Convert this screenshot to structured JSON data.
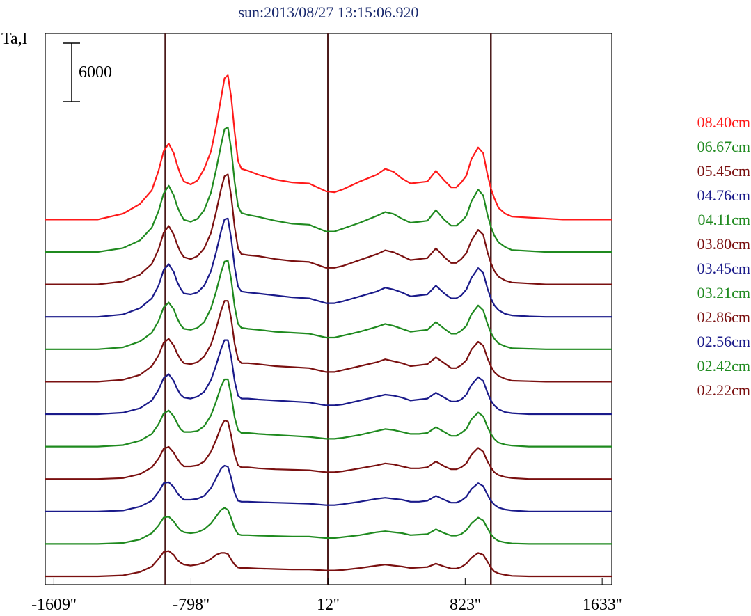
{
  "chart_data": {
    "type": "line",
    "title": "sun:2013/08/27 13:15:06.920",
    "ylabel": "Ta,I",
    "scale_bar_label": "6000",
    "scale_bar_value": 6000,
    "xlim": [
      -1660,
      1690
    ],
    "x_ticks": [
      {
        "value": -1609,
        "label": "-1609''"
      },
      {
        "value": -798,
        "label": "-798''"
      },
      {
        "value": 12,
        "label": "12''"
      },
      {
        "value": 823,
        "label": "823''"
      },
      {
        "value": 1633,
        "label": "1633''"
      }
    ],
    "vertical_markers": [
      -950,
      12,
      975
    ],
    "marker_color": "#4a1a1a",
    "grid": false,
    "legend_position": "right",
    "x": [
      -1660,
      -1500,
      -1350,
      -1200,
      -1100,
      -1030,
      -990,
      -960,
      -930,
      -900,
      -880,
      -860,
      -840,
      -800,
      -760,
      -720,
      -680,
      -650,
      -620,
      -600,
      -580,
      -560,
      -540,
      -520,
      -500,
      -460,
      -400,
      -300,
      -200,
      -100,
      0,
      50,
      100,
      200,
      300,
      350,
      400,
      450,
      500,
      550,
      600,
      650,
      700,
      740,
      770,
      800,
      830,
      860,
      900,
      930,
      955,
      975,
      995,
      1020,
      1060,
      1100,
      1200,
      1300,
      1400,
      1500,
      1690
    ],
    "series": [
      {
        "name": "08.40cm",
        "color": "#ff1a1a",
        "offset": 0,
        "values": [
          0,
          0,
          0,
          600,
          1600,
          3000,
          5000,
          7000,
          7800,
          6800,
          5600,
          4600,
          3900,
          3600,
          4000,
          5200,
          7000,
          9500,
          12500,
          14500,
          14800,
          12500,
          9000,
          6000,
          5200,
          5000,
          4600,
          4100,
          3800,
          3700,
          2900,
          2800,
          3100,
          3900,
          4600,
          5200,
          4900,
          4200,
          3700,
          3800,
          3900,
          5000,
          4000,
          3300,
          3300,
          3800,
          4500,
          6200,
          7400,
          6800,
          4600,
          3200,
          2200,
          1200,
          600,
          300,
          200,
          100,
          0,
          0,
          0
        ]
      },
      {
        "name": "06.67cm",
        "color": "#1f8a1f",
        "offset": 1,
        "values": [
          0,
          0,
          0,
          400,
          1200,
          2500,
          4200,
          6000,
          6800,
          5800,
          4700,
          3900,
          3300,
          3100,
          3400,
          4300,
          6100,
          8400,
          11000,
          12600,
          12800,
          10500,
          7200,
          4700,
          4000,
          3800,
          3600,
          3200,
          2900,
          2800,
          2100,
          2100,
          2400,
          3000,
          3700,
          4100,
          3900,
          3400,
          3000,
          3100,
          3200,
          4300,
          3300,
          2700,
          2700,
          3100,
          3700,
          5200,
          6400,
          5800,
          3800,
          2600,
          1700,
          1000,
          500,
          200,
          100,
          0,
          0,
          0,
          0
        ]
      },
      {
        "name": "05.45cm",
        "color": "#7a1010",
        "offset": 2,
        "values": [
          0,
          0,
          0,
          300,
          1000,
          2100,
          3600,
          5300,
          6000,
          5100,
          4100,
          3300,
          2800,
          2600,
          2900,
          3700,
          5300,
          7400,
          9800,
          11100,
          11300,
          9000,
          5900,
          3700,
          3100,
          3000,
          2900,
          2600,
          2400,
          2300,
          1700,
          1700,
          1900,
          2500,
          3100,
          3500,
          3300,
          2900,
          2500,
          2600,
          2700,
          3700,
          2800,
          2200,
          2200,
          2600,
          3200,
          4500,
          5600,
          5100,
          3300,
          2200,
          1400,
          800,
          400,
          200,
          100,
          0,
          0,
          0,
          0
        ]
      },
      {
        "name": "04.76cm",
        "color": "#1a1a8a",
        "offset": 3,
        "values": [
          0,
          0,
          0,
          250,
          900,
          1900,
          3200,
          4800,
          5400,
          4600,
          3600,
          2900,
          2400,
          2300,
          2500,
          3200,
          4700,
          6600,
          8800,
          10000,
          10100,
          8000,
          5100,
          3100,
          2600,
          2500,
          2400,
          2200,
          2000,
          1900,
          1400,
          1400,
          1600,
          2100,
          2600,
          3000,
          2800,
          2500,
          2100,
          2200,
          2300,
          3200,
          2400,
          1900,
          1900,
          2200,
          2800,
          4000,
          5000,
          4500,
          2900,
          1900,
          1200,
          700,
          300,
          150,
          50,
          0,
          0,
          0,
          0
        ]
      },
      {
        "name": "04.11cm",
        "color": "#1f8a1f",
        "offset": 4,
        "values": [
          0,
          0,
          0,
          200,
          800,
          1700,
          2900,
          4300,
          4800,
          4100,
          3200,
          2500,
          2100,
          2000,
          2200,
          2800,
          4200,
          5900,
          7900,
          9000,
          9100,
          7100,
          4400,
          2600,
          2200,
          2100,
          2000,
          1800,
          1700,
          1600,
          1200,
          1200,
          1400,
          1800,
          2300,
          2600,
          2400,
          2100,
          1800,
          1900,
          2000,
          2800,
          2100,
          1600,
          1600,
          1900,
          2400,
          3600,
          4500,
          4000,
          2600,
          1700,
          1100,
          600,
          300,
          100,
          50,
          0,
          0,
          0,
          0
        ]
      },
      {
        "name": "03.80cm",
        "color": "#7a1010",
        "offset": 5,
        "values": [
          0,
          0,
          0,
          200,
          700,
          1600,
          2700,
          4000,
          4400,
          3700,
          2900,
          2300,
          1900,
          1800,
          2000,
          2600,
          3800,
          5400,
          7300,
          8300,
          8300,
          6400,
          3900,
          2300,
          1900,
          1900,
          1800,
          1600,
          1500,
          1400,
          1000,
          1000,
          1200,
          1600,
          2000,
          2300,
          2100,
          1900,
          1600,
          1700,
          1800,
          2500,
          1900,
          1400,
          1400,
          1700,
          2200,
          3300,
          4100,
          3700,
          2400,
          1600,
          1000,
          600,
          300,
          100,
          50,
          0,
          0,
          0,
          0
        ]
      },
      {
        "name": "03.45cm",
        "color": "#1a1a8a",
        "offset": 6,
        "values": [
          0,
          0,
          0,
          150,
          600,
          1400,
          2500,
          3700,
          4100,
          3400,
          2600,
          2000,
          1700,
          1600,
          1800,
          2300,
          3500,
          5000,
          6700,
          7600,
          7600,
          5800,
          3400,
          1900,
          1600,
          1600,
          1500,
          1400,
          1300,
          1200,
          900,
          900,
          1000,
          1400,
          1800,
          2000,
          1900,
          1700,
          1400,
          1500,
          1600,
          2200,
          1700,
          1300,
          1300,
          1500,
          2000,
          3000,
          3800,
          3400,
          2200,
          1400,
          900,
          500,
          200,
          100,
          0,
          0,
          0,
          0,
          0
        ]
      },
      {
        "name": "03.21cm",
        "color": "#1f8a1f",
        "offset": 7,
        "values": [
          0,
          0,
          0,
          150,
          600,
          1300,
          2300,
          3400,
          3700,
          3100,
          2400,
          1800,
          1500,
          1500,
          1600,
          2100,
          3200,
          4600,
          6200,
          6900,
          6900,
          5200,
          3000,
          1700,
          1400,
          1400,
          1300,
          1200,
          1100,
          1000,
          800,
          800,
          900,
          1200,
          1600,
          1800,
          1700,
          1500,
          1300,
          1300,
          1400,
          2000,
          1500,
          1100,
          1100,
          1400,
          1800,
          2800,
          3500,
          3100,
          2000,
          1300,
          800,
          400,
          200,
          100,
          0,
          0,
          0,
          0,
          0
        ]
      },
      {
        "name": "02.86cm",
        "color": "#7a1010",
        "offset": 8,
        "values": [
          0,
          0,
          0,
          100,
          500,
          1200,
          2100,
          3100,
          3300,
          2700,
          2100,
          1600,
          1300,
          1300,
          1400,
          1800,
          2800,
          4000,
          5400,
          6000,
          5900,
          4400,
          2500,
          1400,
          1200,
          1200,
          1100,
          1000,
          950,
          900,
          700,
          700,
          800,
          1100,
          1400,
          1600,
          1500,
          1300,
          1100,
          1100,
          1200,
          1800,
          1300,
          1000,
          1000,
          1200,
          1600,
          2500,
          3200,
          2800,
          1800,
          1200,
          700,
          400,
          200,
          100,
          0,
          0,
          0,
          0,
          0
        ]
      },
      {
        "name": "02.56cm",
        "color": "#1a1a8a",
        "offset": 9,
        "values": [
          0,
          0,
          0,
          100,
          500,
          1100,
          2000,
          2900,
          3000,
          2500,
          1900,
          1500,
          1200,
          1200,
          1300,
          1600,
          2400,
          3400,
          4400,
          4700,
          4600,
          3400,
          1900,
          1100,
          1000,
          1000,
          950,
          900,
          850,
          800,
          650,
          650,
          750,
          1000,
          1300,
          1400,
          1300,
          1200,
          1000,
          1000,
          1100,
          1600,
          1200,
          900,
          900,
          1100,
          1500,
          2300,
          2900,
          2600,
          1700,
          1100,
          700,
          400,
          200,
          100,
          0,
          0,
          0,
          0,
          0
        ]
      },
      {
        "name": "02.42cm",
        "color": "#1f8a1f",
        "offset": 10,
        "values": [
          0,
          0,
          0,
          100,
          450,
          1100,
          1900,
          2700,
          2800,
          2300,
          1800,
          1400,
          1200,
          1100,
          1200,
          1500,
          2100,
          2800,
          3500,
          3700,
          3500,
          2600,
          1600,
          1000,
          900,
          900,
          850,
          800,
          750,
          750,
          600,
          600,
          700,
          900,
          1200,
          1300,
          1200,
          1100,
          900,
          950,
          1000,
          1500,
          1100,
          850,
          850,
          1000,
          1400,
          2100,
          2700,
          2400,
          1600,
          1000,
          600,
          300,
          150,
          50,
          0,
          0,
          0,
          0,
          0
        ]
      },
      {
        "name": "02.22cm",
        "color": "#7a1010",
        "offset": 11,
        "values": [
          0,
          0,
          0,
          100,
          450,
          1000,
          1800,
          2500,
          2600,
          2200,
          1700,
          1400,
          1200,
          1100,
          1200,
          1400,
          1800,
          2200,
          2400,
          2400,
          2300,
          1700,
          1200,
          900,
          850,
          850,
          800,
          750,
          700,
          700,
          600,
          600,
          650,
          850,
          1100,
          1200,
          1100,
          1000,
          850,
          900,
          950,
          1300,
          1000,
          800,
          800,
          950,
          1300,
          1900,
          2400,
          2200,
          1500,
          900,
          500,
          300,
          150,
          50,
          0,
          0,
          0,
          0,
          0
        ]
      }
    ]
  }
}
